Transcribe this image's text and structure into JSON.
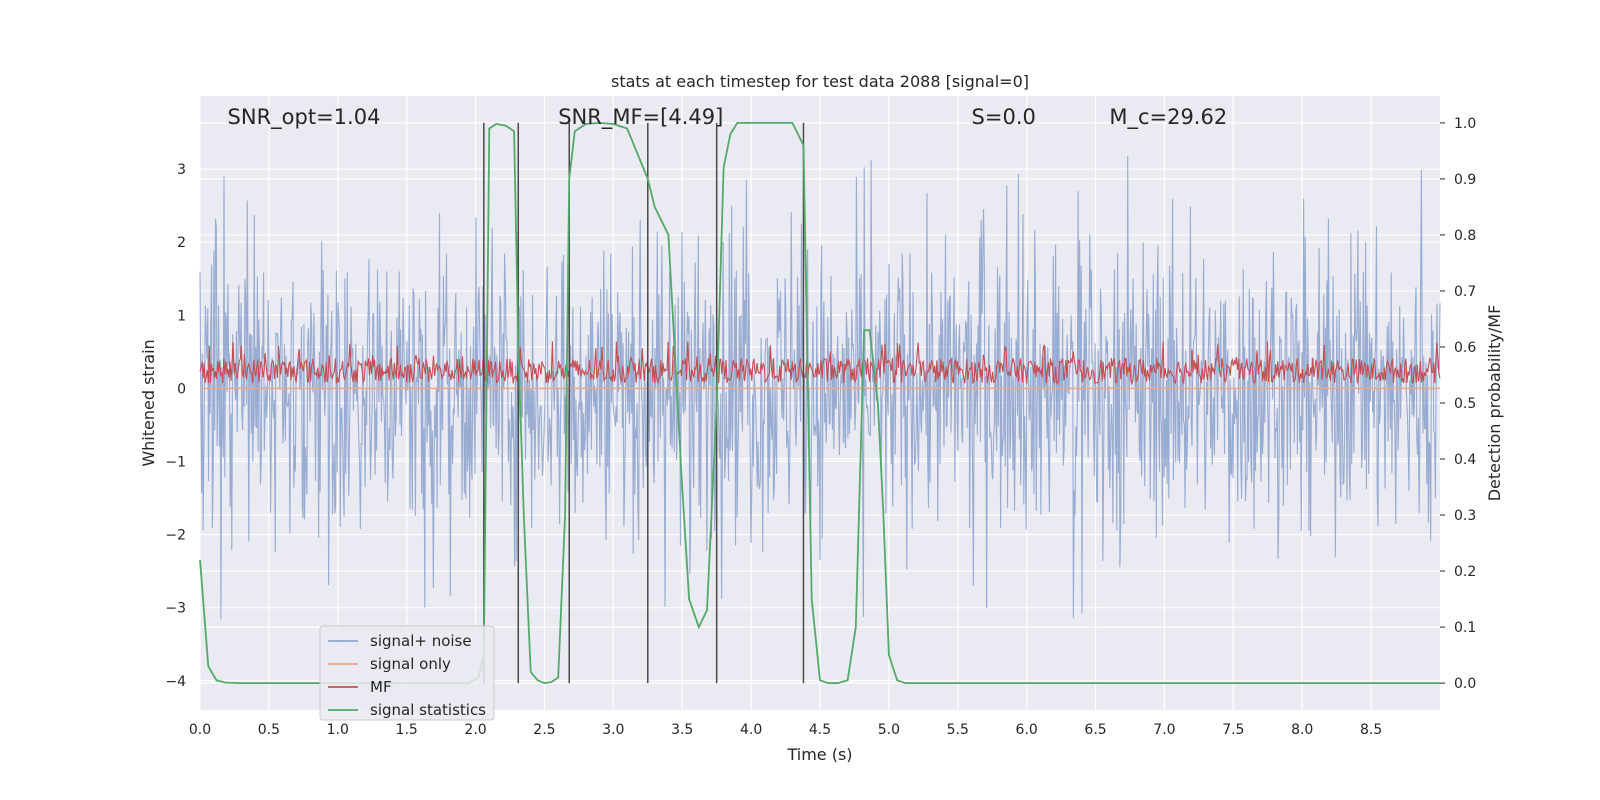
{
  "chart_data": {
    "type": "line",
    "title": "stats at each timestep for test data 2088 [signal=0]",
    "xlabel": "Time (s)",
    "ylabel_left": "Whitened strain",
    "ylabel_right": "Detection probability/MF",
    "xlim": [
      0.0,
      9.0
    ],
    "ylim_left": [
      -4.4,
      4.0
    ],
    "ylim_right": [
      -0.048,
      1.048
    ],
    "x_ticks": [
      "0.0",
      "0.5",
      "1.0",
      "1.5",
      "2.0",
      "2.5",
      "3.0",
      "3.5",
      "4.0",
      "4.5",
      "5.0",
      "5.5",
      "6.0",
      "6.5",
      "7.0",
      "7.5",
      "8.0",
      "8.5"
    ],
    "y_ticks_left": [
      "3",
      "2",
      "1",
      "0",
      "−1",
      "−2",
      "−3",
      "−4"
    ],
    "y_ticks_right": [
      "1.0",
      "0.9",
      "0.8",
      "0.7",
      "0.6",
      "0.5",
      "0.4",
      "0.3",
      "0.2",
      "0.1",
      "0.0"
    ],
    "grid": true,
    "legend_position": "lower-left",
    "annotations": [
      {
        "text": "SNR_opt=1.04",
        "x": 0.2
      },
      {
        "text": "SNR_MF=[4.49]",
        "x": 2.6
      },
      {
        "text": "S=0.0",
        "x": 5.6
      },
      {
        "text": "M_c=29.62",
        "x": 6.6
      }
    ],
    "vertical_lines_x": [
      2.06,
      2.31,
      2.68,
      3.25,
      3.75,
      4.38
    ],
    "series": [
      {
        "name": "signal+ noise",
        "color": "#8fa4cd",
        "axis": "left",
        "kind": "noise",
        "range": [
          -1.3,
          1.2
        ],
        "peak": 3.3,
        "trough": -3.6
      },
      {
        "name": "signal only",
        "color": "#e8a88a",
        "axis": "left",
        "kind": "flat",
        "value": 0.0
      },
      {
        "name": "MF",
        "color": "#c44e52",
        "axis": "right",
        "kind": "noise",
        "range": [
          0.535,
          0.58
        ],
        "peak": 0.61
      },
      {
        "name": "signal statistics",
        "color": "#55a868",
        "axis": "right",
        "x": [
          0.0,
          0.06,
          0.12,
          0.18,
          0.3,
          1.0,
          1.5,
          1.95,
          2.02,
          2.06,
          2.1,
          2.15,
          2.22,
          2.28,
          2.31,
          2.35,
          2.4,
          2.45,
          2.5,
          2.55,
          2.6,
          2.65,
          2.68,
          2.72,
          2.8,
          2.9,
          3.0,
          3.1,
          3.2,
          3.25,
          3.3,
          3.4,
          3.5,
          3.55,
          3.62,
          3.68,
          3.75,
          3.8,
          3.85,
          3.9,
          4.0,
          4.2,
          4.3,
          4.38,
          4.44,
          4.5,
          4.56,
          4.63,
          4.7,
          4.76,
          4.82,
          4.86,
          4.92,
          4.96,
          5.0,
          5.06,
          5.12,
          5.2,
          5.5,
          9.0
        ],
        "y": [
          0.22,
          0.03,
          0.005,
          0.001,
          0.0,
          0.0,
          0.0,
          0.0,
          0.01,
          0.05,
          0.99,
          0.998,
          0.995,
          0.985,
          0.6,
          0.3,
          0.02,
          0.005,
          0.0,
          0.002,
          0.01,
          0.3,
          0.9,
          0.985,
          0.998,
          1.0,
          0.998,
          0.99,
          0.93,
          0.9,
          0.85,
          0.8,
          0.35,
          0.15,
          0.1,
          0.13,
          0.5,
          0.92,
          0.98,
          1.0,
          1.0,
          1.0,
          1.0,
          0.96,
          0.15,
          0.005,
          0.0,
          0.0,
          0.005,
          0.1,
          0.63,
          0.63,
          0.5,
          0.3,
          0.05,
          0.005,
          0.0,
          0.0,
          0.0,
          0.0
        ]
      }
    ]
  }
}
